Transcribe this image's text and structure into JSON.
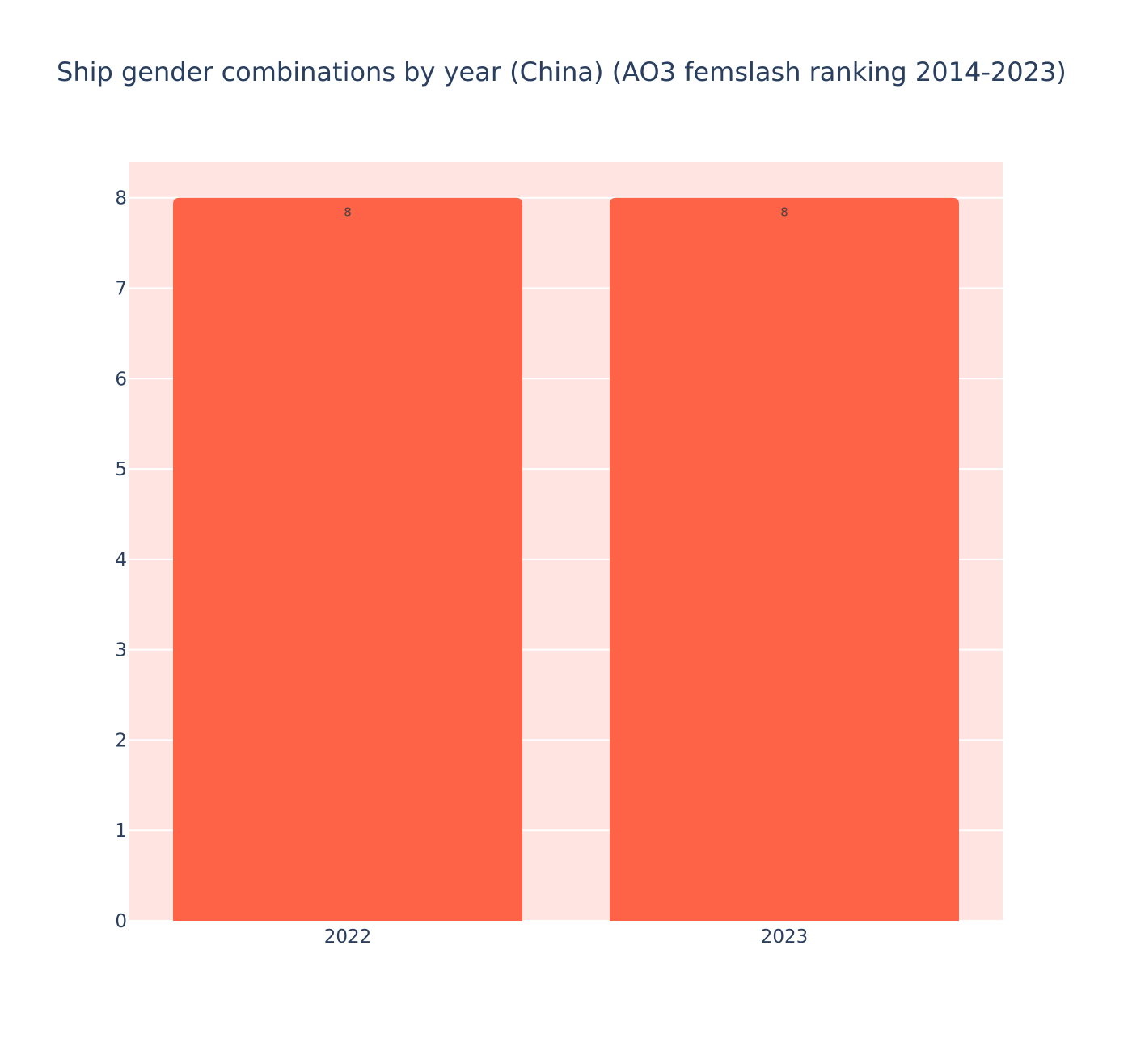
{
  "chart_data": {
    "type": "bar",
    "title": "Ship gender combinations by year (China) (AO3 femslash ranking 2014-2023)",
    "xlabel": "",
    "ylabel": "",
    "categories": [
      "2022",
      "2023"
    ],
    "values": [
      8,
      8
    ],
    "data_labels": [
      "8",
      "8"
    ],
    "ylim": [
      0,
      8.4
    ],
    "yticks": [
      0,
      1,
      2,
      3,
      4,
      5,
      6,
      7,
      8
    ],
    "grid": true,
    "legend": "none",
    "colors": {
      "bar": "#ff6347",
      "plot_background": "#ffe4e1",
      "grid": "#ffffff",
      "text": "#2a3f5f",
      "data_label": "#444444"
    }
  }
}
